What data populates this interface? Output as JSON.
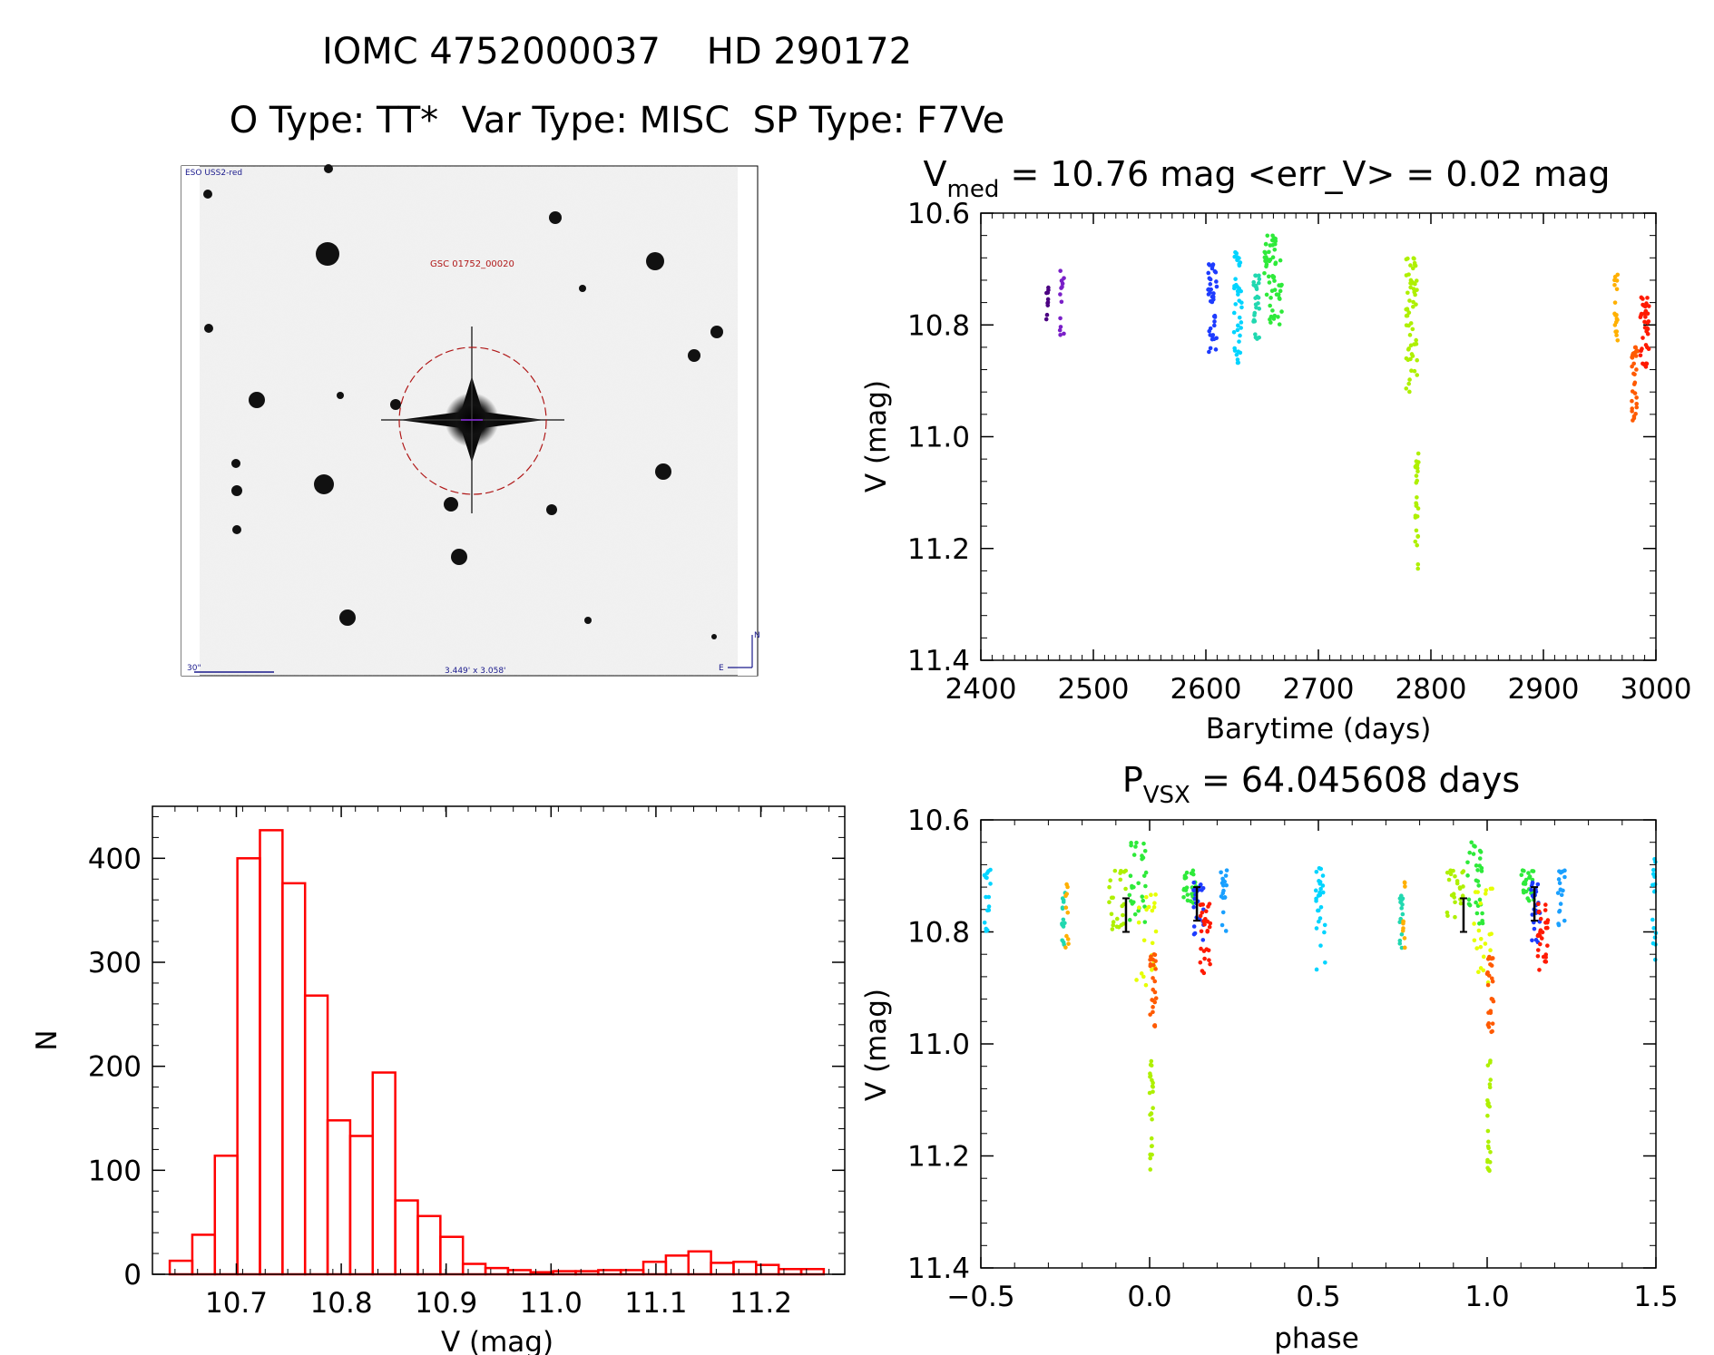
{
  "header": {
    "line1": "IOMC 4752000037    HD 290172",
    "line2": "O Type: TT*  Var Type: MISC  SP Type: F7Ve"
  },
  "finder": {
    "survey": "ESO USS2-red",
    "label": "GSC 01752_00020",
    "scale": "30\"",
    "fov": "3.449' x 3.058'",
    "north": "N",
    "east": "E"
  },
  "palette": [
    "#4b0082",
    "#7a1fc8",
    "#1e3cff",
    "#1aa0ff",
    "#00d4ff",
    "#21d8b0",
    "#2eea3a",
    "#aef000",
    "#e6ff00",
    "#ffb000",
    "#ff5a00",
    "#ff1a00"
  ],
  "chart_data": [
    {
      "id": "lightcurve",
      "type": "scatter",
      "title_main": "V",
      "title_sub": "med",
      "title_rest": " = 10.76 mag <err_V> = 0.02 mag",
      "xlabel": "Barytime (days)",
      "ylabel": "V (mag)",
      "xlim": [
        2400,
        3000
      ],
      "ylim": [
        11.4,
        10.6
      ],
      "xticks": [
        2400,
        2500,
        2600,
        2700,
        2800,
        2900,
        3000
      ],
      "xtick_labels": [
        "2400",
        "2500",
        "2600",
        "2700",
        "2800",
        "2900",
        "3000"
      ],
      "yticks": [
        10.6,
        10.8,
        11.0,
        11.2,
        11.4
      ],
      "ytick_labels": [
        "10.6",
        "10.8",
        "11.0",
        "11.2",
        "11.4"
      ],
      "segments": [
        {
          "t0": 2458,
          "t1": 2461,
          "m0": 10.73,
          "m1": 10.8,
          "color": 0,
          "n": 10
        },
        {
          "t0": 2470,
          "t1": 2474,
          "m0": 10.7,
          "m1": 10.82,
          "color": 1,
          "n": 14
        },
        {
          "t0": 2602,
          "t1": 2610,
          "m0": 10.69,
          "m1": 10.85,
          "color": 2,
          "n": 40
        },
        {
          "t0": 2625,
          "t1": 2632,
          "m0": 10.67,
          "m1": 10.87,
          "color": 4,
          "n": 40
        },
        {
          "t0": 2642,
          "t1": 2648,
          "m0": 10.71,
          "m1": 10.83,
          "color": 5,
          "n": 28
        },
        {
          "t0": 2652,
          "t1": 2668,
          "m0": 10.64,
          "m1": 10.8,
          "color": 6,
          "n": 60
        },
        {
          "t0": 2778,
          "t1": 2788,
          "m0": 10.68,
          "m1": 10.92,
          "color": 7,
          "n": 60
        },
        {
          "t0": 2786,
          "t1": 2789,
          "m0": 11.03,
          "m1": 11.24,
          "color": 7,
          "n": 28
        },
        {
          "t0": 2963,
          "t1": 2966,
          "m0": 10.71,
          "m1": 10.83,
          "color": 9,
          "n": 18
        },
        {
          "t0": 2978,
          "t1": 2984,
          "m0": 10.84,
          "m1": 10.98,
          "color": 10,
          "n": 30
        },
        {
          "t0": 2986,
          "t1": 2994,
          "m0": 10.75,
          "m1": 10.88,
          "color": 11,
          "n": 36
        }
      ]
    },
    {
      "id": "histogram",
      "type": "bar",
      "xlabel": "V (mag)",
      "ylabel": "N",
      "xlim": [
        10.62,
        11.28
      ],
      "ylim": [
        0,
        450
      ],
      "xticks": [
        10.7,
        10.8,
        10.9,
        11.0,
        11.1,
        11.2
      ],
      "xtick_labels": [
        "10.7",
        "10.8",
        "10.9",
        "11.0",
        "11.1",
        "11.2"
      ],
      "yticks": [
        0,
        100,
        200,
        300,
        400
      ],
      "ytick_labels": [
        "0",
        "100",
        "200",
        "300",
        "400"
      ],
      "bin_width": 0.0215,
      "bin_start": 10.6365,
      "values": [
        13,
        38,
        114,
        400,
        427,
        376,
        268,
        148,
        133,
        194,
        71,
        56,
        36,
        10,
        6,
        4,
        2,
        3,
        3,
        4,
        4,
        12,
        18,
        22,
        11,
        12,
        9,
        5,
        5
      ]
    },
    {
      "id": "phased",
      "type": "scatter",
      "title_main": "P",
      "title_sub": "VSX",
      "title_rest": " = 64.045608 days",
      "xlabel": "phase",
      "ylabel": "V (mag)",
      "xlim": [
        -0.5,
        1.5
      ],
      "ylim": [
        11.4,
        10.6
      ],
      "xticks": [
        -0.5,
        0.0,
        0.5,
        1.0,
        1.5
      ],
      "xtick_labels": [
        "−0.5",
        "0.0",
        "0.5",
        "1.0",
        "1.5"
      ],
      "yticks": [
        10.6,
        10.8,
        11.0,
        11.2,
        11.4
      ],
      "ytick_labels": [
        "10.6",
        "10.8",
        "11.0",
        "11.2",
        "11.4"
      ],
      "clusters": [
        {
          "p0": -0.49,
          "p1": -0.47,
          "m0": 10.68,
          "m1": 10.8,
          "color": 4,
          "n": 16
        },
        {
          "p0": -0.26,
          "p1": -0.25,
          "m0": 10.73,
          "m1": 10.83,
          "color": 5,
          "n": 14
        },
        {
          "p0": -0.25,
          "p1": -0.24,
          "m0": 10.71,
          "m1": 10.84,
          "color": 9,
          "n": 10
        },
        {
          "p0": -0.12,
          "p1": -0.07,
          "m0": 10.69,
          "m1": 10.8,
          "color": 7,
          "n": 24
        },
        {
          "p0": -0.06,
          "p1": -0.01,
          "m0": 10.64,
          "m1": 10.79,
          "color": 6,
          "n": 30
        },
        {
          "p0": -0.04,
          "p1": 0.02,
          "m0": 10.72,
          "m1": 10.92,
          "color": 8,
          "n": 22
        },
        {
          "p0": 0.0,
          "p1": 0.01,
          "m0": 11.03,
          "m1": 11.24,
          "color": 7,
          "n": 24
        },
        {
          "p0": 0.0,
          "p1": 0.02,
          "m0": 10.84,
          "m1": 10.98,
          "color": 10,
          "n": 24
        },
        {
          "p0": 0.1,
          "p1": 0.14,
          "m0": 10.69,
          "m1": 10.75,
          "color": 6,
          "n": 24
        },
        {
          "p0": 0.13,
          "p1": 0.16,
          "m0": 10.71,
          "m1": 10.82,
          "color": 2,
          "n": 24
        },
        {
          "p0": 0.15,
          "p1": 0.18,
          "m0": 10.75,
          "m1": 10.88,
          "color": 11,
          "n": 28
        },
        {
          "p0": 0.21,
          "p1": 0.23,
          "m0": 10.69,
          "m1": 10.8,
          "color": 3,
          "n": 18
        },
        {
          "p0": 0.49,
          "p1": 0.52,
          "m0": 10.67,
          "m1": 10.87,
          "color": 4,
          "n": 28
        },
        {
          "p0": 0.74,
          "p1": 0.75,
          "m0": 10.73,
          "m1": 10.83,
          "color": 5,
          "n": 14
        },
        {
          "p0": 0.75,
          "p1": 0.76,
          "m0": 10.71,
          "m1": 10.84,
          "color": 9,
          "n": 10
        },
        {
          "p0": 0.88,
          "p1": 0.93,
          "m0": 10.69,
          "m1": 10.8,
          "color": 7,
          "n": 24
        },
        {
          "p0": 0.94,
          "p1": 0.99,
          "m0": 10.64,
          "m1": 10.79,
          "color": 6,
          "n": 30
        },
        {
          "p0": 0.96,
          "p1": 1.02,
          "m0": 10.72,
          "m1": 10.92,
          "color": 8,
          "n": 22
        },
        {
          "p0": 1.0,
          "p1": 1.01,
          "m0": 11.03,
          "m1": 11.24,
          "color": 7,
          "n": 24
        },
        {
          "p0": 1.0,
          "p1": 1.02,
          "m0": 10.84,
          "m1": 10.98,
          "color": 10,
          "n": 24
        },
        {
          "p0": 1.1,
          "p1": 1.14,
          "m0": 10.69,
          "m1": 10.75,
          "color": 6,
          "n": 24
        },
        {
          "p0": 1.13,
          "p1": 1.16,
          "m0": 10.71,
          "m1": 10.82,
          "color": 2,
          "n": 24
        },
        {
          "p0": 1.15,
          "p1": 1.18,
          "m0": 10.75,
          "m1": 10.88,
          "color": 11,
          "n": 28
        },
        {
          "p0": 1.21,
          "p1": 1.23,
          "m0": 10.69,
          "m1": 10.8,
          "color": 3,
          "n": 18
        },
        {
          "p0": 1.49,
          "p1": 1.5,
          "m0": 10.67,
          "m1": 10.87,
          "color": 4,
          "n": 16
        }
      ],
      "error_bars": [
        {
          "phase": -0.07,
          "mag": 10.77,
          "err": 0.03
        },
        {
          "phase": 0.14,
          "mag": 10.75,
          "err": 0.03
        },
        {
          "phase": 0.93,
          "mag": 10.77,
          "err": 0.03
        },
        {
          "phase": 1.14,
          "mag": 10.75,
          "err": 0.03
        }
      ]
    }
  ]
}
